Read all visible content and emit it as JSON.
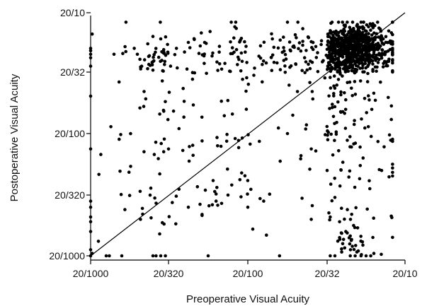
{
  "chart_data": {
    "type": "scatter",
    "xlabel": "Preoperative Visual Acuity",
    "ylabel": "Postoperative Visual Acuity",
    "scale": "logMAR (log)",
    "xlim": [
      1.0,
      -0.3
    ],
    "ylim": [
      1.0,
      -0.3
    ],
    "ticks": [
      {
        "label": "20/1000",
        "logmar": 1.0
      },
      {
        "label": "20/320",
        "logmar": 0.5
      },
      {
        "label": "20/100",
        "logmar": 0.3
      },
      {
        "label": "20/32",
        "logmar": 0.2
      },
      {
        "label": "20/10",
        "logmar": -0.3
      }
    ],
    "reference_line": "identity (postoperative = preoperative)",
    "grid": false,
    "marker_color": "#000000",
    "seed": 7,
    "clusters": [
      {
        "cx": 0.07,
        "cy": 0.05,
        "sx": 0.15,
        "sy": 0.12,
        "n": 620
      },
      {
        "cx": 0.02,
        "cy": -0.05,
        "sx": 0.1,
        "sy": 0.06,
        "n": 260
      },
      {
        "cx": 0.3,
        "cy": 0.25,
        "sx": 0.18,
        "sy": 0.15,
        "n": 140
      },
      {
        "cx": 0.1,
        "cy": 0.55,
        "sx": 0.18,
        "sy": 0.2,
        "n": 60
      },
      {
        "cx": 0.05,
        "cy": 0.9,
        "sx": 0.05,
        "sy": 0.06,
        "n": 22
      },
      {
        "cx": 0.62,
        "cy": 0.25,
        "sx": 0.16,
        "sy": 0.25,
        "n": 55
      },
      {
        "cx": 0.55,
        "cy": 0.05,
        "sx": 0.05,
        "sy": 0.05,
        "n": 18
      }
    ],
    "points": [
      [
        1.0,
        0.0
      ],
      [
        1.0,
        0.02
      ],
      [
        1.0,
        0.05
      ],
      [
        1.0,
        0.08
      ],
      [
        1.0,
        0.15
      ],
      [
        1.0,
        0.35
      ],
      [
        1.0,
        0.55
      ],
      [
        1.0,
        0.6
      ],
      [
        1.0,
        0.68
      ],
      [
        1.0,
        0.72
      ],
      [
        1.0,
        0.8
      ],
      [
        1.0,
        0.95
      ],
      [
        1.0,
        1.0
      ],
      [
        0.99,
        0.98
      ],
      [
        0.99,
        -0.12
      ],
      [
        0.95,
        0.88
      ],
      [
        0.9,
        1.0
      ],
      [
        0.88,
        1.0
      ],
      [
        0.85,
        0.05
      ],
      [
        0.8,
        1.0
      ],
      [
        0.78,
        0.62
      ],
      [
        0.72,
        0.0
      ],
      [
        0.7,
        0.05
      ],
      [
        0.68,
        0.7
      ],
      [
        0.6,
        1.0
      ],
      [
        0.58,
        1.0
      ],
      [
        0.55,
        1.0
      ],
      [
        0.52,
        1.0
      ],
      [
        0.5,
        0.35
      ],
      [
        0.45,
        0.6
      ],
      [
        0.4,
        1.0
      ],
      [
        0.38,
        0.55
      ],
      [
        0.35,
        0.5
      ],
      [
        0.32,
        0.45
      ],
      [
        0.26,
        1.0
      ],
      [
        0.22,
        0.7
      ],
      [
        0.18,
        1.0
      ],
      [
        0.15,
        1.0
      ],
      [
        0.12,
        0.85
      ],
      [
        0.1,
        0.9
      ],
      [
        0.05,
        0.95
      ],
      [
        0.02,
        1.0
      ],
      [
        -0.05,
        1.0
      ],
      [
        -0.1,
        0.98
      ],
      [
        -0.08,
        1.0
      ],
      [
        -0.02,
        0.99
      ],
      [
        0.0,
        0.96
      ],
      [
        -0.15,
        0.42
      ],
      [
        -0.2,
        -0.05
      ],
      [
        -0.22,
        0.0
      ],
      [
        -0.18,
        0.03
      ],
      [
        -0.16,
        -0.08
      ],
      [
        0.25,
        -0.22
      ],
      [
        0.6,
        -0.1
      ],
      [
        0.55,
        -0.08
      ],
      [
        0.45,
        -0.05
      ],
      [
        0.42,
        -0.02
      ],
      [
        0.48,
        0.0
      ],
      [
        0.3,
        0.6
      ],
      [
        0.28,
        0.55
      ],
      [
        0.2,
        0.42
      ],
      [
        0.15,
        0.52
      ],
      [
        0.07,
        0.62
      ],
      [
        0.05,
        0.7
      ],
      [
        0.03,
        0.75
      ],
      [
        0.08,
        0.8
      ],
      [
        0.12,
        0.72
      ],
      [
        0.18,
        0.68
      ],
      [
        0.25,
        0.3
      ],
      [
        0.22,
        0.35
      ]
    ]
  }
}
